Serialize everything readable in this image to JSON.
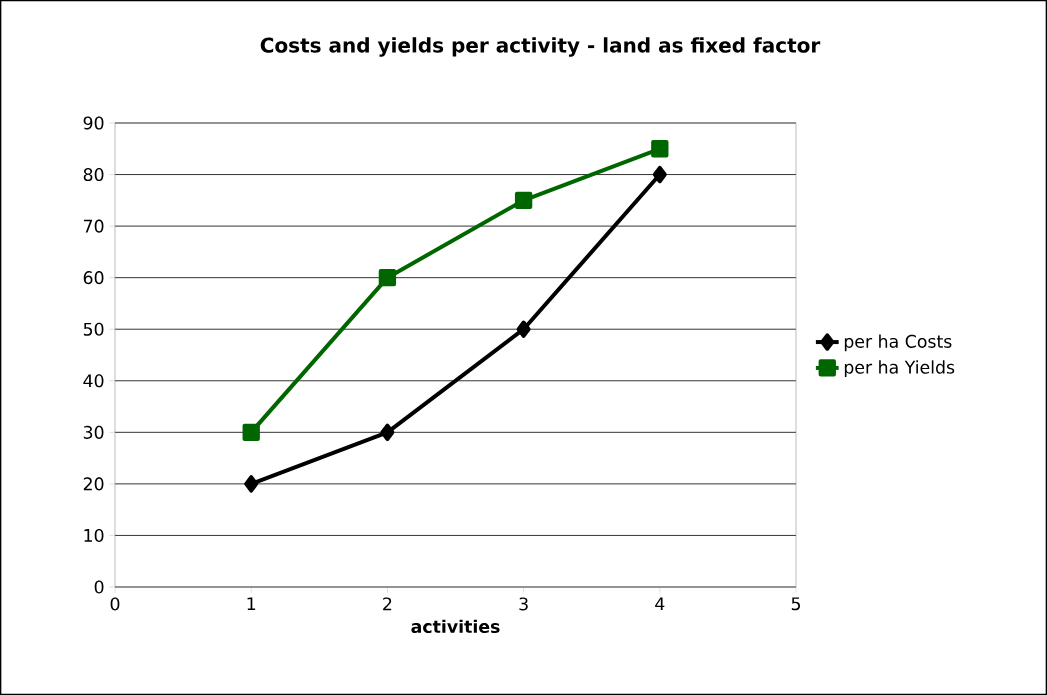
{
  "chart_data": {
    "type": "line",
    "title": "Costs and yields per activity - land as fixed factor",
    "xlabel": "activities",
    "x": [
      1,
      2,
      3,
      4
    ],
    "series": [
      {
        "name": "per ha Costs",
        "color": "#000000",
        "marker": "diamond",
        "values": [
          20,
          30,
          50,
          80
        ]
      },
      {
        "name": "per ha Yields",
        "color": "#006600",
        "marker": "square",
        "values": [
          30,
          60,
          75,
          85
        ]
      }
    ],
    "xlim": [
      0,
      5
    ],
    "xticks": [
      0,
      1,
      2,
      3,
      4,
      5
    ],
    "ylim": [
      0,
      90
    ],
    "yticks": [
      0,
      10,
      20,
      30,
      40,
      50,
      60,
      70,
      80,
      90
    ],
    "grid": "y",
    "legend": "right",
    "line_style": "solid"
  }
}
